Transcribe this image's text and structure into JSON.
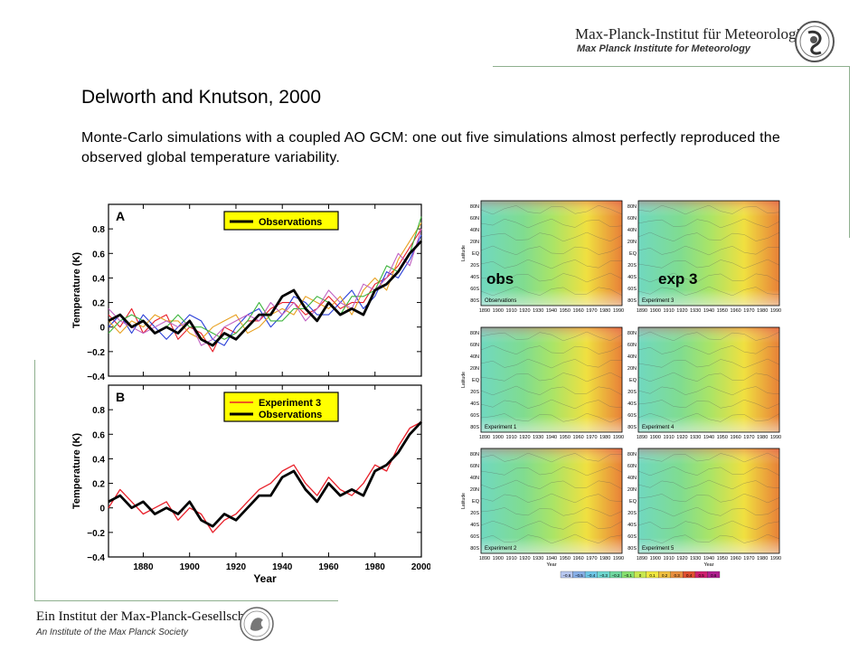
{
  "header": {
    "institute_de": "Max-Planck-Institut für Meteorologie",
    "institute_en": "Max Planck Institute for Meteorology",
    "logo_icon": "mpg-seal-icon"
  },
  "slide": {
    "title": "Delworth and Knutson, 2000",
    "subtitle": "Monte-Carlo simulations with a coupled AO GCM: one out five simulations almost perfectly reproduced the observed global temperature variability."
  },
  "footer": {
    "society_de": "Ein Institut der Max-Planck-Gesellschaft",
    "society_en": "An Institute of the Max Planck Society",
    "logo_icon": "minerva-seal-icon"
  },
  "colors": {
    "observations": "#000000",
    "experiment3": "#e8202a",
    "ensemble": [
      "#e8202a",
      "#2a3fd8",
      "#e8a020",
      "#3cb43c",
      "#c060c0"
    ],
    "legend_bg": "#ffff00",
    "rule": "#8fb08f"
  },
  "chart_data": [
    {
      "type": "line",
      "panel": "A",
      "xlabel": "",
      "ylabel": "Temperature (K)",
      "xlim": [
        1865,
        2000
      ],
      "ylim": [
        -0.4,
        1.0
      ],
      "yticks": [
        "−0.4",
        "−0.2",
        "0",
        "0.2",
        "0.4",
        "0.6",
        "0.8"
      ],
      "ytick_values": [
        -0.4,
        -0.2,
        0,
        0.2,
        0.4,
        0.6,
        0.8
      ],
      "x": [
        1865,
        1870,
        1875,
        1880,
        1885,
        1890,
        1895,
        1900,
        1905,
        1910,
        1915,
        1920,
        1925,
        1930,
        1935,
        1940,
        1945,
        1950,
        1955,
        1960,
        1965,
        1970,
        1975,
        1980,
        1985,
        1990,
        1995,
        2000
      ],
      "legend": [
        "Observations"
      ],
      "series": [
        {
          "name": "Observations",
          "values": [
            0.05,
            0.1,
            0.0,
            0.05,
            -0.05,
            0.0,
            -0.05,
            0.05,
            -0.1,
            -0.15,
            -0.05,
            -0.1,
            0.0,
            0.1,
            0.1,
            0.25,
            0.3,
            0.15,
            0.05,
            0.2,
            0.1,
            0.15,
            0.1,
            0.3,
            0.35,
            0.45,
            0.6,
            0.7
          ]
        },
        {
          "values": [
            0.1,
            0.0,
            0.15,
            -0.05,
            0.05,
            0.1,
            -0.1,
            0.0,
            -0.05,
            -0.2,
            0.0,
            -0.05,
            0.05,
            0.05,
            0.15,
            0.2,
            0.2,
            0.1,
            0.15,
            0.25,
            0.15,
            0.2,
            0.2,
            0.35,
            0.4,
            0.5,
            0.65,
            0.8
          ]
        },
        {
          "values": [
            0.0,
            0.1,
            -0.05,
            0.1,
            0.0,
            -0.1,
            0.0,
            0.1,
            0.05,
            -0.1,
            -0.15,
            0.0,
            0.1,
            0.15,
            0.0,
            0.1,
            0.25,
            0.2,
            0.1,
            0.1,
            0.2,
            0.3,
            0.15,
            0.25,
            0.45,
            0.4,
            0.55,
            0.75
          ]
        },
        {
          "values": [
            0.05,
            -0.05,
            0.05,
            0.0,
            0.1,
            0.05,
            0.05,
            -0.05,
            -0.1,
            0.0,
            0.05,
            0.1,
            -0.05,
            0.0,
            0.1,
            0.15,
            0.1,
            0.25,
            0.2,
            0.15,
            0.25,
            0.1,
            0.3,
            0.4,
            0.3,
            0.55,
            0.7,
            0.85
          ]
        },
        {
          "values": [
            -0.05,
            0.05,
            0.1,
            0.05,
            -0.05,
            0.0,
            0.1,
            0.0,
            0.0,
            -0.05,
            -0.1,
            -0.05,
            0.05,
            0.2,
            0.05,
            0.05,
            0.15,
            0.15,
            0.25,
            0.2,
            0.1,
            0.25,
            0.25,
            0.3,
            0.5,
            0.45,
            0.6,
            0.9
          ]
        },
        {
          "values": [
            0.15,
            0.05,
            0.0,
            -0.05,
            0.0,
            0.05,
            0.0,
            0.05,
            -0.15,
            -0.1,
            0.0,
            0.05,
            0.1,
            0.05,
            0.2,
            0.1,
            0.2,
            0.05,
            0.15,
            0.3,
            0.2,
            0.15,
            0.35,
            0.3,
            0.4,
            0.6,
            0.5,
            0.8
          ]
        }
      ]
    },
    {
      "type": "line",
      "panel": "B",
      "xlabel": "Year",
      "ylabel": "Temperature (K)",
      "xlim": [
        1865,
        2000
      ],
      "ylim": [
        -0.4,
        1.0
      ],
      "yticks": [
        "−0.4",
        "−0.2",
        "0",
        "0.2",
        "0.4",
        "0.6",
        "0.8"
      ],
      "ytick_values": [
        -0.4,
        -0.2,
        0,
        0.2,
        0.4,
        0.6,
        0.8
      ],
      "xticks": [
        "1880",
        "1900",
        "1920",
        "1940",
        "1960",
        "1980",
        "2000"
      ],
      "xtick_values": [
        1880,
        1900,
        1920,
        1940,
        1960,
        1980,
        2000
      ],
      "x": [
        1865,
        1870,
        1875,
        1880,
        1885,
        1890,
        1895,
        1900,
        1905,
        1910,
        1915,
        1920,
        1925,
        1930,
        1935,
        1940,
        1945,
        1950,
        1955,
        1960,
        1965,
        1970,
        1975,
        1980,
        1985,
        1990,
        1995,
        2000
      ],
      "legend": [
        "Experiment 3",
        "Observations"
      ],
      "series": [
        {
          "name": "Experiment 3",
          "values": [
            0.0,
            0.15,
            0.05,
            -0.05,
            0.0,
            0.05,
            -0.1,
            0.0,
            -0.05,
            -0.2,
            -0.1,
            -0.05,
            0.05,
            0.15,
            0.2,
            0.3,
            0.35,
            0.2,
            0.1,
            0.25,
            0.15,
            0.1,
            0.2,
            0.35,
            0.3,
            0.5,
            0.65,
            0.7
          ]
        },
        {
          "name": "Observations",
          "values": [
            0.05,
            0.1,
            0.0,
            0.05,
            -0.05,
            0.0,
            -0.05,
            0.05,
            -0.1,
            -0.15,
            -0.05,
            -0.1,
            0.0,
            0.1,
            0.1,
            0.25,
            0.3,
            0.15,
            0.05,
            0.2,
            0.1,
            0.15,
            0.1,
            0.3,
            0.35,
            0.45,
            0.6,
            0.7
          ]
        }
      ]
    },
    {
      "type": "heatmap",
      "panels": [
        {
          "label": "Observations",
          "overlay": "obs"
        },
        {
          "label": "Experiment 3",
          "overlay": "exp 3"
        },
        {
          "label": "Experiment 1"
        },
        {
          "label": "Experiment 4"
        },
        {
          "label": "Experiment 2"
        },
        {
          "label": "Experiment 5"
        }
      ],
      "ylabel": "Latitude",
      "xlabel": "Year",
      "lat_ticks": [
        "80N",
        "60N",
        "40N",
        "20N",
        "EQ",
        "20S",
        "40S",
        "60S",
        "80S"
      ],
      "year_ticks": [
        "1890",
        "1900",
        "1910",
        "1920",
        "1930",
        "1940",
        "1950",
        "1960",
        "1970",
        "1980",
        "1990"
      ],
      "colorbar_ticks": [
        "−0.6",
        "−0.5",
        "−0.4",
        "−0.3",
        "−0.2",
        "−0.1",
        "0",
        "0.1",
        "0.2",
        "0.3",
        "0.4",
        "0.5",
        "0.6"
      ],
      "colorbar_colors": [
        "#b8c8f0",
        "#88b0e8",
        "#70c8e8",
        "#70d8d0",
        "#70d8a0",
        "#88e070",
        "#c8e850",
        "#f0e840",
        "#f0c040",
        "#e89040",
        "#e05030",
        "#d02070",
        "#b02090"
      ]
    }
  ]
}
